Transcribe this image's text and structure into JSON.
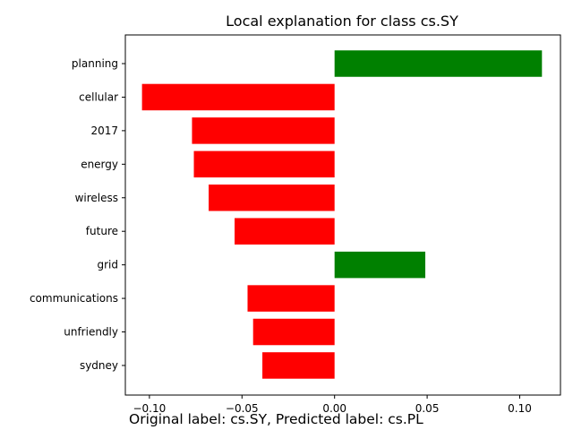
{
  "chart_data": {
    "type": "bar",
    "orientation": "horizontal",
    "title": "Local explanation for class cs.SY",
    "xlabel": "",
    "ylabel": "",
    "categories": [
      "planning",
      "cellular",
      "2017",
      "energy",
      "wireless",
      "future",
      "grid",
      "communications",
      "unfriendly",
      "sydney"
    ],
    "values": [
      0.112,
      -0.104,
      -0.077,
      -0.076,
      -0.068,
      -0.054,
      0.049,
      -0.047,
      -0.044,
      -0.039
    ],
    "xlim": [
      -0.113,
      0.122
    ],
    "xticks": [
      -0.1,
      -0.05,
      0.0,
      0.05,
      0.1
    ],
    "xtick_labels": [
      "−0.10",
      "−0.05",
      "0.00",
      "0.05",
      "0.10"
    ],
    "positive_color": "#008000",
    "negative_color": "#ff0000",
    "grid": false,
    "legend": "none"
  },
  "caption": "Original label: cs.SY, Predicted label: cs.PL"
}
